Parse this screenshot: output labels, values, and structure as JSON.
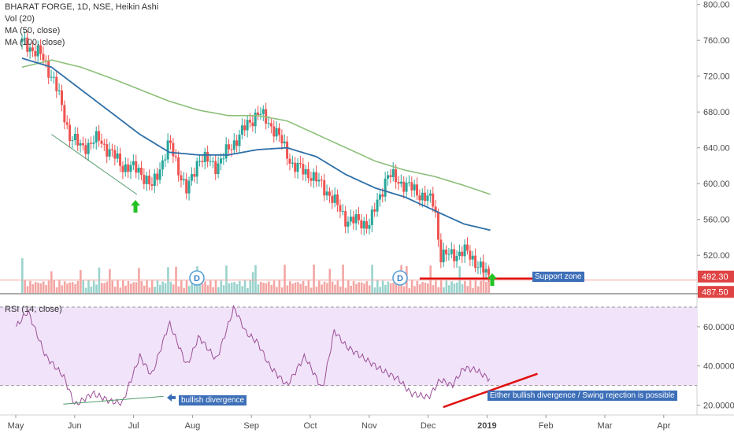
{
  "header": {
    "title": "BHARAT FORGE, 1D, NSE, Heikin Ashi",
    "indicators": [
      "Vol (20)",
      "MA (50, close)",
      "MA (100, close)"
    ]
  },
  "rsi_panel": {
    "title": "RSI (14, close)"
  },
  "annotations": {
    "support_zone": "Support zone",
    "bullish_divergence": "bullish divergence",
    "either_note": "Either bullish divergence / Swing rejection is possible"
  },
  "colors": {
    "up": "#26a69a",
    "down": "#ef5350",
    "ma50": "#2f6fa7",
    "ma100": "#8cc07a",
    "rsi_line": "#9b4f96",
    "rsi_band": "#f1e3fa",
    "support_line": "#e01010",
    "arrow": "#22c322",
    "label_bg": "#3d6fb8",
    "price_badge": "#e04343"
  },
  "chart_data": [
    {
      "type": "candlestick",
      "title": "BHARAT FORGE, 1D, NSE, Heikin Ashi",
      "x_ticks": [
        "May",
        "Jun",
        "Jul",
        "Aug",
        "Sep",
        "Oct",
        "Nov",
        "Dec",
        "2019",
        "Feb",
        "Mar",
        "Apr"
      ],
      "y_ticks": [
        520,
        560,
        600,
        640,
        680,
        720,
        760,
        800
      ],
      "price_badges": [
        "492.30",
        "487.50"
      ],
      "ylim": [
        478,
        805
      ],
      "price_path": {
        "months": [
          0,
          0.3,
          0.55,
          0.8,
          1.0,
          1.3,
          1.7,
          2.0,
          2.2,
          2.5,
          2.8,
          3.0,
          3.3,
          3.7,
          4.0,
          4.3,
          4.6,
          4.9,
          5.2,
          5.5,
          5.9,
          6.2,
          6.6,
          7.0,
          7.1,
          7.3,
          7.5,
          7.75,
          7.95
        ],
        "close": [
          758,
          745,
          715,
          655,
          640,
          650,
          620,
          615,
          595,
          645,
          590,
          630,
          620,
          655,
          680,
          660,
          620,
          610,
          590,
          560,
          555,
          610,
          595,
          578,
          520,
          520,
          525,
          510,
          492
        ]
      },
      "ma50": {
        "months": [
          0,
          0.5,
          1.0,
          1.5,
          2.0,
          2.5,
          3.0,
          3.5,
          4.0,
          4.5,
          5.0,
          5.5,
          6.0,
          6.5,
          7.0,
          7.5,
          7.95
        ],
        "values": [
          740,
          730,
          705,
          680,
          655,
          635,
          632,
          632,
          638,
          640,
          630,
          610,
          595,
          585,
          570,
          555,
          548
        ]
      },
      "ma100": {
        "months": [
          0,
          0.5,
          1.0,
          1.5,
          2.0,
          2.5,
          3.0,
          3.5,
          4.0,
          4.5,
          5.0,
          5.5,
          6.0,
          6.5,
          7.0,
          7.5,
          7.95
        ],
        "values": [
          730,
          738,
          730,
          718,
          705,
          692,
          682,
          676,
          676,
          670,
          655,
          640,
          625,
          615,
          608,
          598,
          588
        ]
      },
      "support_level": 492.3
    },
    {
      "type": "line",
      "title": "RSI (14, close)",
      "x_ticks": [
        "May",
        "Jun",
        "Jul",
        "Aug",
        "Sep",
        "Oct",
        "Nov",
        "Dec",
        "2019",
        "Feb",
        "Mar",
        "Apr"
      ],
      "y_ticks": [
        "20.0000",
        "40.0000",
        "60.0000"
      ],
      "ylim": [
        15,
        72
      ],
      "band": [
        30,
        70
      ],
      "months": [
        -0.1,
        0.1,
        0.4,
        0.7,
        0.9,
        1.2,
        1.5,
        1.7,
        2.0,
        2.2,
        2.5,
        2.8,
        3.0,
        3.3,
        3.6,
        3.8,
        4.0,
        4.2,
        4.5,
        4.8,
        5.1,
        5.3,
        5.5,
        5.8,
        6.1,
        6.4,
        6.6,
        6.9,
        7.1,
        7.3,
        7.5,
        7.7,
        7.95
      ],
      "values": [
        60,
        68,
        45,
        35,
        20,
        26,
        22,
        21,
        45,
        35,
        62,
        40,
        55,
        43,
        70,
        57,
        52,
        40,
        30,
        45,
        28,
        58,
        50,
        44,
        38,
        33,
        26,
        24,
        33,
        30,
        39,
        38,
        33
      ]
    }
  ]
}
